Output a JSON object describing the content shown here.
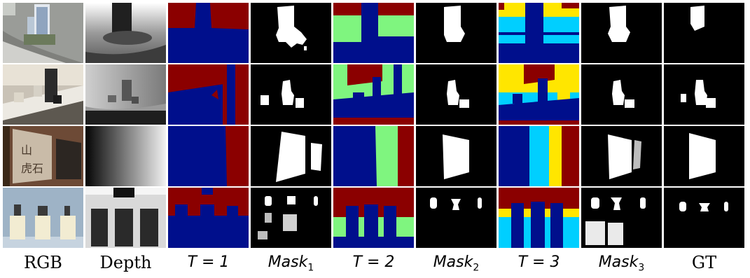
{
  "columns": [
    {
      "label": "RGB"
    },
    {
      "label": "Depth"
    },
    {
      "label": "T = 1"
    },
    {
      "label_main": "Mask",
      "label_sub": "1"
    },
    {
      "label": "T = 2"
    },
    {
      "label_main": "Mask",
      "label_sub": "2"
    },
    {
      "label": "T = 3"
    },
    {
      "label_main": "Mask",
      "label_sub": "3"
    },
    {
      "label": "GT"
    }
  ],
  "colors": {
    "cluster_dark_red": "#8b0000",
    "cluster_navy": "#000f8c",
    "cluster_green": "#7ff57f",
    "cluster_cyan": "#00cfff",
    "cluster_yellow": "#ffe600",
    "mask_bg": "#000000",
    "mask_fg": "#ffffff"
  },
  "rows": [
    {
      "scene": "building model on road"
    },
    {
      "scene": "kettle and mugs on shelf"
    },
    {
      "scene": "calligraphy panel on wall"
    },
    {
      "scene": "vases on pedestals"
    }
  ]
}
